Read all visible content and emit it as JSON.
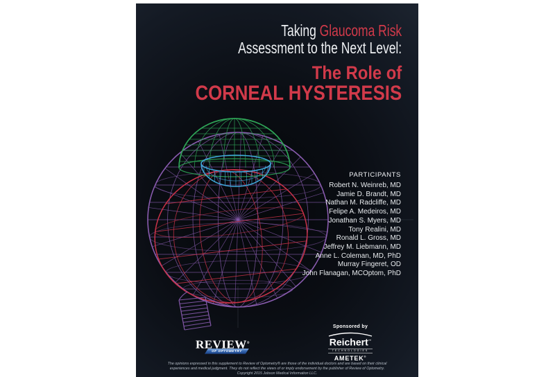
{
  "cover": {
    "title": {
      "line1_white": "Taking ",
      "line1_red": "Glaucoma Risk",
      "line2": "Assessment to the Next Level:",
      "line3": "The Role of",
      "line4": "CORNEAL HYSTERESIS"
    },
    "participants": {
      "heading": "PARTICIPANTS",
      "names": [
        "Robert N. Weinreb, MD",
        "Jamie D. Brandt, MD",
        "Nathan M. Radcliffe, MD",
        "Felipe A. Medeiros, MD",
        "Jonathan S. Myers, MD",
        "Tony Realini, MD",
        "Ronald L. Gross, MD",
        "Jeffrey M. Liebmann, MD",
        "Anne L. Coleman, MD, PhD",
        "Murray Fingeret, OD",
        "John Flanagan, MCOptom, PhD"
      ]
    },
    "sponsor": {
      "label": "Sponsored by",
      "brand": "Reichert",
      "brand_tm": "™",
      "division": "TECHNOLOGIES",
      "parent": "AMETEK",
      "parent_reg": "®"
    },
    "publisher": {
      "name": "REVIEW",
      "reg": "®",
      "tagline": "OF OPTOMETRY"
    },
    "disclaimer": [
      "The opinions expressed in this supplement to Review of Optometry® are those of the individual doctors and are based on their clinical",
      "experiences and medical judgment. They do not reflect the views of or imply endorsement by the publisher of Review of Optometry.",
      "Copyright 2015 Jobson Medical Information LLC."
    ],
    "colors": {
      "accent_red": "#d13a4a",
      "white_text": "#eef0f3",
      "banner_blue": "#2f63ad",
      "globe_purple": "#8a5cb0",
      "sphere_red": "#c93248",
      "cornea_green": "#2fa557",
      "lens_cyan": "#41aadd",
      "background_slate": "#2d3644"
    }
  }
}
